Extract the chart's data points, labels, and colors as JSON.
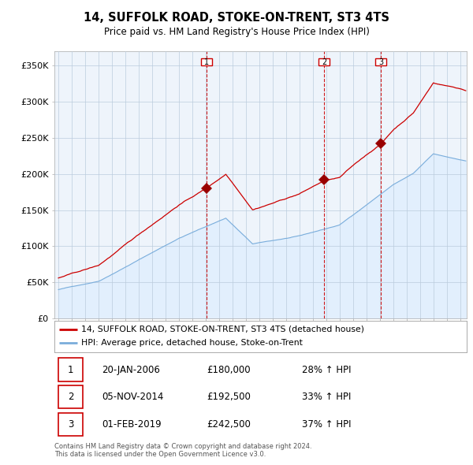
{
  "title": "14, SUFFOLK ROAD, STOKE-ON-TRENT, ST3 4TS",
  "subtitle": "Price paid vs. HM Land Registry's House Price Index (HPI)",
  "ylabel_ticks": [
    "£0",
    "£50K",
    "£100K",
    "£150K",
    "£200K",
    "£250K",
    "£300K",
    "£350K"
  ],
  "ytick_values": [
    0,
    50000,
    100000,
    150000,
    200000,
    250000,
    300000,
    350000
  ],
  "ylim": [
    0,
    370000
  ],
  "xlim_start": 1994.7,
  "xlim_end": 2025.5,
  "sale_color": "#cc0000",
  "hpi_color": "#7aaddb",
  "hpi_fill_color": "#ddeeff",
  "sale_dates": [
    2006.05,
    2014.84,
    2019.08
  ],
  "sale_prices": [
    180000,
    192500,
    242500
  ],
  "sale_labels": [
    "1",
    "2",
    "3"
  ],
  "legend_sale": "14, SUFFOLK ROAD, STOKE-ON-TRENT, ST3 4TS (detached house)",
  "legend_hpi": "HPI: Average price, detached house, Stoke-on-Trent",
  "table_data": [
    [
      "1",
      "20-JAN-2006",
      "£180,000",
      "28% ↑ HPI"
    ],
    [
      "2",
      "05-NOV-2014",
      "£192,500",
      "33% ↑ HPI"
    ],
    [
      "3",
      "01-FEB-2019",
      "£242,500",
      "37% ↑ HPI"
    ]
  ],
  "footer": "Contains HM Land Registry data © Crown copyright and database right 2024.\nThis data is licensed under the Open Government Licence v3.0.",
  "background_color": "#ffffff",
  "grid_color": "#cccccc"
}
